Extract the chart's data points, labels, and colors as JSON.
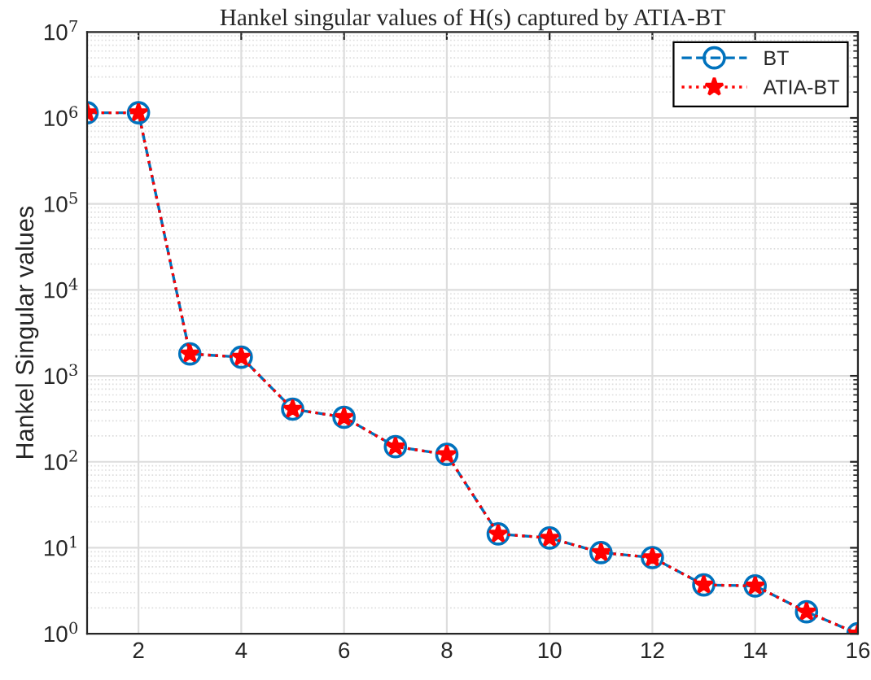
{
  "chart_data": {
    "type": "line",
    "title": "Hankel singular values of H(s) captured by ATIA-BT",
    "ylabel": "Hankel Singular values",
    "x": [
      1,
      2,
      3,
      4,
      5,
      6,
      7,
      8,
      9,
      10,
      11,
      12,
      13,
      14,
      15,
      16
    ],
    "series": [
      {
        "name": "BT",
        "color": "#0072bd",
        "marker": "circle",
        "line_style": "dashed",
        "values": [
          1150000,
          1150000,
          1800,
          1650,
          410,
          330,
          150,
          122,
          14.5,
          13,
          8.8,
          7.7,
          3.7,
          3.6,
          1.8,
          1.0
        ]
      },
      {
        "name": "ATIA-BT",
        "color": "#ff0000",
        "marker": "star",
        "line_style": "dotted",
        "values": [
          1150000,
          1150000,
          1800,
          1650,
          410,
          330,
          150,
          122,
          14.5,
          13,
          8.8,
          7.7,
          3.7,
          3.6,
          1.8,
          1.0
        ]
      }
    ],
    "log": "y",
    "xlim": [
      1,
      16
    ],
    "xticks": [
      2,
      4,
      6,
      8,
      10,
      12,
      14,
      16
    ],
    "ylim": [
      1,
      10000000
    ],
    "yticks": [
      {
        "value": 1,
        "label": "10$^{0}$"
      },
      {
        "value": 10,
        "label": "10$^{1}$"
      },
      {
        "value": 100,
        "label": "10$^{2}$"
      },
      {
        "value": 1000,
        "label": "10$^{3}$"
      },
      {
        "value": 10000,
        "label": "10$^{4}$"
      },
      {
        "value": 100000,
        "label": "10$^{5}$"
      },
      {
        "value": 1000000,
        "label": "10$^{6}$"
      },
      {
        "value": 10000000,
        "label": "10$^{7}$"
      }
    ],
    "grid": true,
    "legend": "top right"
  }
}
